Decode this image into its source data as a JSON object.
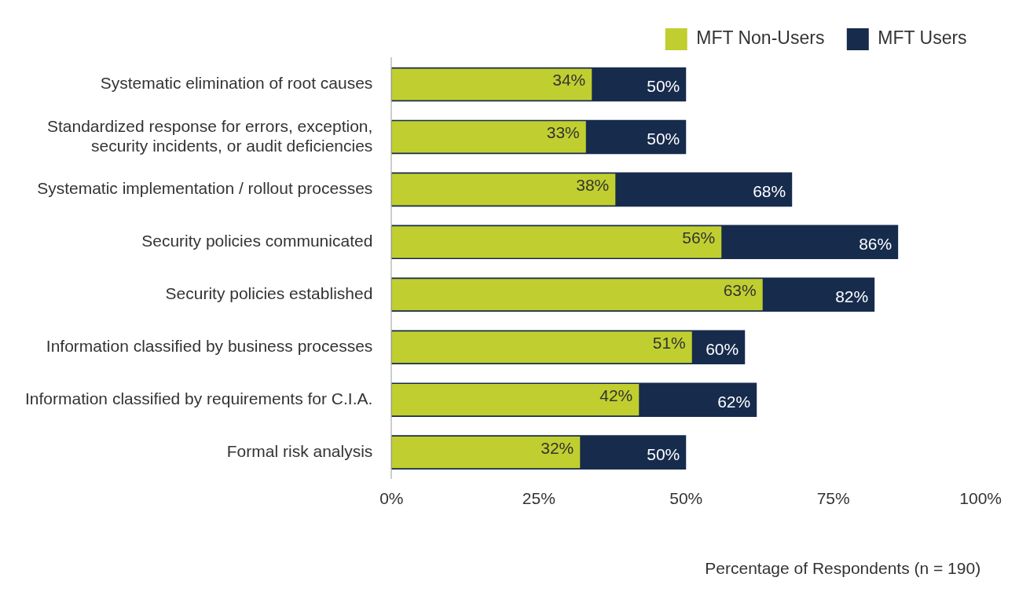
{
  "chart_data": {
    "type": "bar",
    "orientation": "horizontal",
    "xlabel": "Percentage of Respondents (n = 190)",
    "categories": [
      "Systematic elimination of root causes",
      "Standardized response for errors, exception, security incidents, or audit deficiencies",
      "Systematic implementation / rollout processes",
      "Security policies communicated",
      "Security policies established",
      "Information classified by business processes",
      "Information classified by requirements for C.I.A.",
      "Formal risk analysis"
    ],
    "series": [
      {
        "name": "MFT Non-Users",
        "color": "#c0cf2f",
        "values": [
          34,
          33,
          38,
          56,
          63,
          51,
          42,
          32
        ],
        "value_labels": [
          "34%",
          "33%",
          "38%",
          "56%",
          "63%",
          "51%",
          "42%",
          "32%"
        ]
      },
      {
        "name": "MFT Users",
        "color": "#172b4d",
        "values": [
          50,
          50,
          68,
          86,
          82,
          60,
          62,
          50
        ],
        "value_labels": [
          "50%",
          "50%",
          "68%",
          "86%",
          "82%",
          "60%",
          "62%",
          "50%"
        ]
      }
    ],
    "xlim": [
      0,
      100
    ],
    "xticks": [
      {
        "value": 0,
        "label": "0%"
      },
      {
        "value": 25,
        "label": "25%"
      },
      {
        "value": 50,
        "label": "50%"
      },
      {
        "value": 75,
        "label": "75%"
      },
      {
        "value": 100,
        "label": "100%"
      }
    ],
    "grid": false,
    "legend": "top right"
  }
}
